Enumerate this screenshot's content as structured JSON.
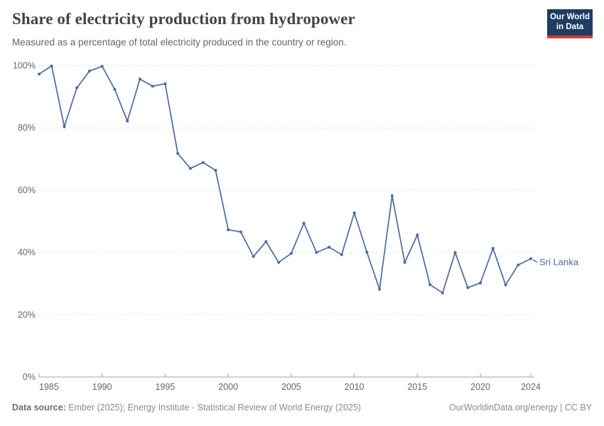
{
  "header": {
    "title": "Share of electricity production from hydropower",
    "subtitle": "Measured as a percentage of total electricity produced in the country or region.",
    "logo_line1": "Our World",
    "logo_line2": "in Data"
  },
  "chart_data": {
    "type": "line",
    "title": "Share of electricity production from hydropower",
    "xlabel": "",
    "ylabel": "",
    "ylim": [
      0,
      100
    ],
    "grid": "horizontal-dashed",
    "legend_position": "end-of-line-label",
    "ytick_labels": [
      "0%",
      "20%",
      "40%",
      "60%",
      "80%",
      "100%"
    ],
    "yticks": [
      0,
      20,
      40,
      60,
      80,
      100
    ],
    "xticks": [
      1985,
      1990,
      1995,
      2000,
      2005,
      2010,
      2015,
      2020,
      2024
    ],
    "x": [
      1985,
      1986,
      1987,
      1988,
      1989,
      1990,
      1991,
      1992,
      1993,
      1994,
      1995,
      1996,
      1997,
      1998,
      1999,
      2000,
      2001,
      2002,
      2003,
      2004,
      2005,
      2006,
      2007,
      2008,
      2009,
      2010,
      2011,
      2012,
      2013,
      2014,
      2015,
      2016,
      2017,
      2018,
      2019,
      2020,
      2021,
      2022,
      2023,
      2024
    ],
    "series": [
      {
        "name": "Sri Lanka",
        "color": "#4C6A9C",
        "values": [
          97.3,
          99.9,
          80.4,
          92.9,
          98.3,
          99.8,
          92.4,
          82.2,
          95.7,
          93.4,
          94.2,
          71.8,
          67.0,
          68.9,
          66.4,
          47.3,
          46.6,
          38.7,
          43.5,
          36.8,
          39.7,
          49.4,
          40.0,
          41.7,
          39.3,
          52.7,
          40.1,
          28.2,
          58.2,
          36.8,
          45.6,
          29.7,
          27.0,
          40.0,
          28.7,
          30.2,
          41.3,
          29.6,
          36.0,
          38.0
        ]
      }
    ]
  },
  "footer": {
    "source_label": "Data source:",
    "source_text": " Ember (2025); Energy Institute - Statistical Review of World Energy (2025)",
    "right_text": "OurWorldinData.org/energy | CC BY"
  },
  "colors": {
    "line": "#4C6A9C",
    "grid": "#dcdcdc",
    "axis": "#a3a3a3",
    "tick_text": "#666666",
    "logo_bg": "#1d3d63",
    "logo_bar": "#d73a33"
  }
}
